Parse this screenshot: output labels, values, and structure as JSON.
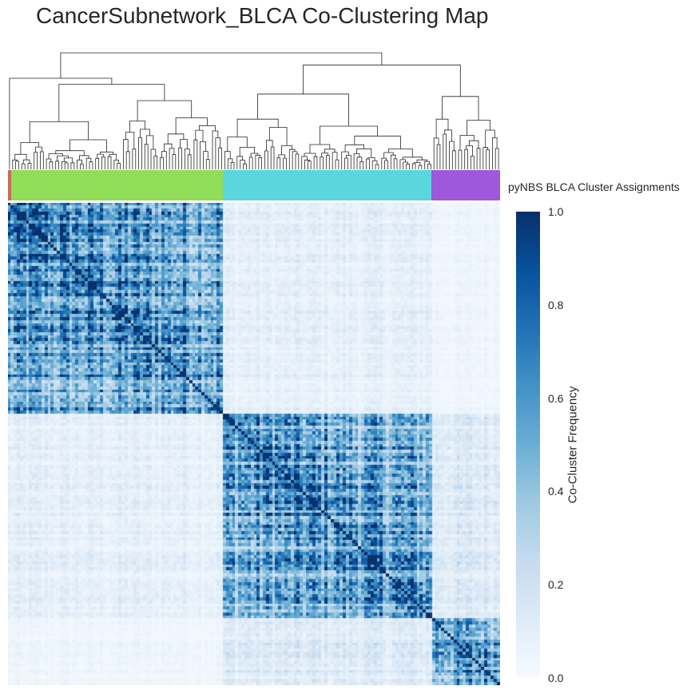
{
  "chart_data": {
    "type": "heatmap",
    "title": "CancerSubnetwork_BLCA Co-Clustering Map",
    "row_color_label": "pyNBS BLCA Cluster Assignments",
    "colorbar": {
      "label": "Co-Cluster Frequency",
      "min": 0.0,
      "max": 1.0,
      "ticks": [
        "0.0",
        "0.2",
        "0.4",
        "0.6",
        "0.8",
        "1.0"
      ],
      "colormap": "Blues",
      "color_low": "#f7fbff",
      "color_high": "#08306b"
    },
    "clusters": [
      {
        "fraction": 0.006,
        "color": "#c96a5a"
      },
      {
        "fraction": 0.43,
        "color": "#91dc58"
      },
      {
        "fraction": 0.425,
        "color": "#5ad6dc"
      },
      {
        "fraction": 0.139,
        "color": "#9e58dc"
      }
    ],
    "dendrogram_shown": true,
    "block_mean_frequency": [
      [
        0.8,
        0.1,
        0.05,
        0.1
      ],
      [
        0.1,
        0.75,
        0.15,
        0.1
      ],
      [
        0.05,
        0.15,
        0.7,
        0.2
      ],
      [
        0.1,
        0.1,
        0.2,
        0.65
      ]
    ]
  }
}
